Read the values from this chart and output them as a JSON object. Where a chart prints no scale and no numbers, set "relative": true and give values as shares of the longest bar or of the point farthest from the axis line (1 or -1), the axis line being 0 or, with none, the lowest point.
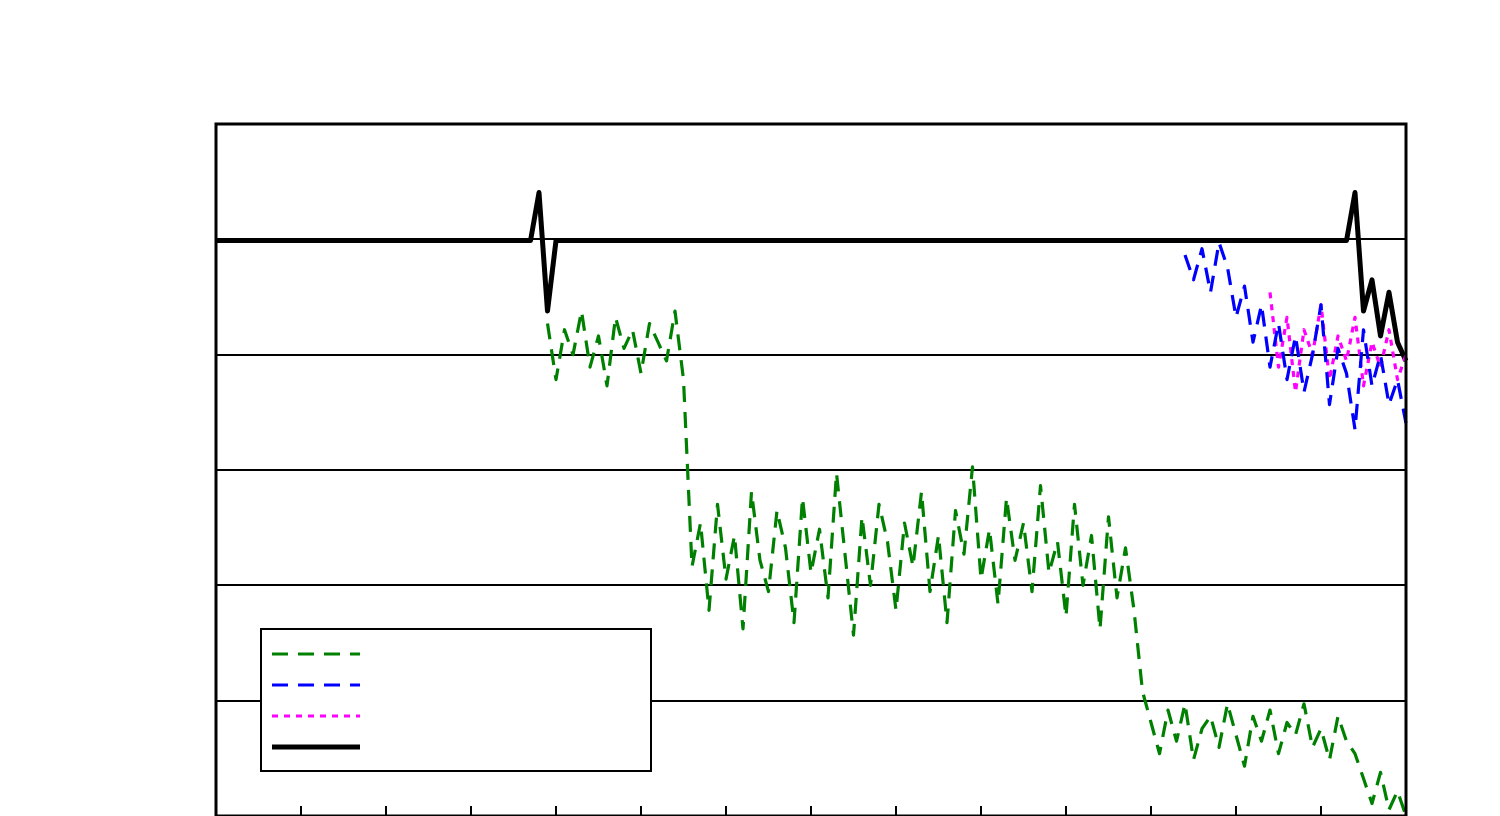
{
  "chart_data": {
    "type": "line",
    "relative": true,
    "grid": "y",
    "marker": "none",
    "categories": [
      null,
      null,
      null,
      null,
      null,
      null,
      null,
      null,
      null,
      null,
      null,
      null,
      null,
      null,
      null,
      null,
      null,
      null,
      null,
      null,
      null,
      null,
      null,
      null,
      null,
      null,
      null,
      null,
      null,
      null,
      null,
      null,
      null,
      null,
      null,
      null,
      null,
      null,
      null,
      null,
      null,
      null,
      null,
      null,
      null,
      null,
      null,
      null,
      null,
      null,
      null,
      null,
      null,
      null,
      null,
      null,
      null,
      null,
      null,
      null,
      null,
      null,
      null,
      null,
      null,
      null,
      null,
      null,
      null,
      null,
      null,
      null,
      null,
      null,
      null,
      null,
      null,
      null,
      null,
      null,
      null,
      null,
      null,
      null,
      null,
      null,
      null,
      null,
      null,
      null,
      null,
      null,
      null,
      null,
      null,
      null,
      null,
      null,
      null,
      null,
      null,
      null,
      null,
      null,
      null,
      null,
      null,
      null,
      null,
      null,
      null,
      null,
      null,
      null,
      null,
      null,
      null,
      null,
      null,
      null,
      null,
      null,
      null,
      null,
      null,
      null,
      null,
      null,
      null,
      null,
      null,
      null,
      null,
      null,
      null,
      null,
      null,
      null,
      null,
      null,
      null
    ],
    "series": [
      {
        "color": "#008000",
        "line_style": "dashed",
        "values": [
          null,
          null,
          null,
          null,
          null,
          null,
          null,
          null,
          null,
          null,
          null,
          null,
          null,
          null,
          null,
          null,
          null,
          null,
          null,
          null,
          null,
          null,
          null,
          null,
          null,
          null,
          null,
          null,
          null,
          null,
          null,
          null,
          null,
          null,
          null,
          null,
          null,
          null,
          null,
          0.79,
          0.7,
          0.78,
          0.74,
          0.81,
          0.72,
          0.77,
          0.69,
          0.8,
          0.75,
          0.78,
          0.71,
          0.79,
          0.76,
          0.73,
          0.81,
          0.7,
          0.4,
          0.47,
          0.33,
          0.5,
          0.38,
          0.45,
          0.3,
          0.52,
          0.41,
          0.36,
          0.49,
          0.43,
          0.31,
          0.51,
          0.39,
          0.46,
          0.35,
          0.55,
          0.42,
          0.29,
          0.48,
          0.37,
          0.5,
          0.44,
          0.33,
          0.47,
          0.4,
          0.52,
          0.36,
          0.45,
          0.31,
          0.49,
          0.42,
          0.56,
          0.38,
          0.46,
          0.34,
          0.51,
          0.41,
          0.47,
          0.36,
          0.53,
          0.39,
          0.44,
          0.32,
          0.5,
          0.37,
          0.45,
          0.3,
          0.48,
          0.35,
          0.43,
          0.33,
          0.2,
          0.15,
          0.1,
          0.17,
          0.12,
          0.18,
          0.09,
          0.14,
          0.16,
          0.11,
          0.18,
          0.13,
          0.08,
          0.16,
          0.12,
          0.17,
          0.1,
          0.15,
          0.13,
          0.18,
          0.11,
          0.14,
          0.09,
          0.16,
          0.12,
          0.1,
          0.06,
          0.02,
          0.07,
          0.01,
          0.04,
          0.0
        ]
      },
      {
        "color": "#0000ff",
        "line_style": "dashed",
        "values": [
          null,
          null,
          null,
          null,
          null,
          null,
          null,
          null,
          null,
          null,
          null,
          null,
          null,
          null,
          null,
          null,
          null,
          null,
          null,
          null,
          null,
          null,
          null,
          null,
          null,
          null,
          null,
          null,
          null,
          null,
          null,
          null,
          null,
          null,
          null,
          null,
          null,
          null,
          null,
          null,
          null,
          null,
          null,
          null,
          null,
          null,
          null,
          null,
          null,
          null,
          null,
          null,
          null,
          null,
          null,
          null,
          null,
          null,
          null,
          null,
          null,
          null,
          null,
          null,
          null,
          null,
          null,
          null,
          null,
          null,
          null,
          null,
          null,
          null,
          null,
          null,
          null,
          null,
          null,
          null,
          null,
          null,
          null,
          null,
          null,
          null,
          null,
          null,
          null,
          null,
          null,
          null,
          null,
          null,
          null,
          null,
          null,
          null,
          null,
          null,
          null,
          null,
          null,
          null,
          null,
          null,
          null,
          null,
          null,
          null,
          null,
          null,
          null,
          null,
          0.9,
          0.86,
          0.91,
          0.84,
          0.92,
          0.88,
          0.8,
          0.85,
          0.76,
          0.82,
          0.72,
          0.79,
          0.7,
          0.77,
          0.68,
          0.74,
          0.82,
          0.66,
          0.75,
          0.71,
          0.62,
          0.78,
          0.69,
          0.74,
          0.66,
          0.7,
          0.63
        ]
      },
      {
        "color": "#ff00ff",
        "line_style": "dotted",
        "values": [
          null,
          null,
          null,
          null,
          null,
          null,
          null,
          null,
          null,
          null,
          null,
          null,
          null,
          null,
          null,
          null,
          null,
          null,
          null,
          null,
          null,
          null,
          null,
          null,
          null,
          null,
          null,
          null,
          null,
          null,
          null,
          null,
          null,
          null,
          null,
          null,
          null,
          null,
          null,
          null,
          null,
          null,
          null,
          null,
          null,
          null,
          null,
          null,
          null,
          null,
          null,
          null,
          null,
          null,
          null,
          null,
          null,
          null,
          null,
          null,
          null,
          null,
          null,
          null,
          null,
          null,
          null,
          null,
          null,
          null,
          null,
          null,
          null,
          null,
          null,
          null,
          null,
          null,
          null,
          null,
          null,
          null,
          null,
          null,
          null,
          null,
          null,
          null,
          null,
          null,
          null,
          null,
          null,
          null,
          null,
          null,
          null,
          null,
          null,
          null,
          null,
          null,
          null,
          null,
          null,
          null,
          null,
          null,
          null,
          null,
          null,
          null,
          null,
          null,
          null,
          null,
          null,
          null,
          null,
          null,
          null,
          null,
          null,
          null,
          0.84,
          0.72,
          0.8,
          0.68,
          0.78,
          0.74,
          0.82,
          0.7,
          0.77,
          0.73,
          0.8,
          0.69,
          0.76,
          0.72,
          0.78,
          0.7,
          0.74
        ]
      },
      {
        "color": "#000000",
        "line_style": "solid",
        "values": [
          0.923,
          0.923,
          0.923,
          0.923,
          0.923,
          0.923,
          0.923,
          0.923,
          0.923,
          0.923,
          0.923,
          0.923,
          0.923,
          0.923,
          0.923,
          0.923,
          0.923,
          0.923,
          0.923,
          0.923,
          0.923,
          0.923,
          0.923,
          0.923,
          0.923,
          0.923,
          0.923,
          0.923,
          0.923,
          0.923,
          0.923,
          0.923,
          0.923,
          0.923,
          0.923,
          0.923,
          0.923,
          0.923,
          1.0,
          0.81,
          0.923,
          0.923,
          0.923,
          0.923,
          0.923,
          0.923,
          0.923,
          0.923,
          0.923,
          0.923,
          0.923,
          0.923,
          0.923,
          0.923,
          0.923,
          0.923,
          0.923,
          0.923,
          0.923,
          0.923,
          0.923,
          0.923,
          0.923,
          0.923,
          0.923,
          0.923,
          0.923,
          0.923,
          0.923,
          0.923,
          0.923,
          0.923,
          0.923,
          0.923,
          0.923,
          0.923,
          0.923,
          0.923,
          0.923,
          0.923,
          0.923,
          0.923,
          0.923,
          0.923,
          0.923,
          0.923,
          0.923,
          0.923,
          0.923,
          0.923,
          0.923,
          0.923,
          0.923,
          0.923,
          0.923,
          0.923,
          0.923,
          0.923,
          0.923,
          0.923,
          0.923,
          0.923,
          0.923,
          0.923,
          0.923,
          0.923,
          0.923,
          0.923,
          0.923,
          0.923,
          0.923,
          0.923,
          0.923,
          0.923,
          0.923,
          0.923,
          0.923,
          0.923,
          0.923,
          0.923,
          0.923,
          0.923,
          0.923,
          0.923,
          0.923,
          0.923,
          0.923,
          0.923,
          0.923,
          0.923,
          0.923,
          0.923,
          0.923,
          0.923,
          1.0,
          0.81,
          0.86,
          0.77,
          0.84,
          0.76,
          0.73
        ]
      }
    ]
  }
}
